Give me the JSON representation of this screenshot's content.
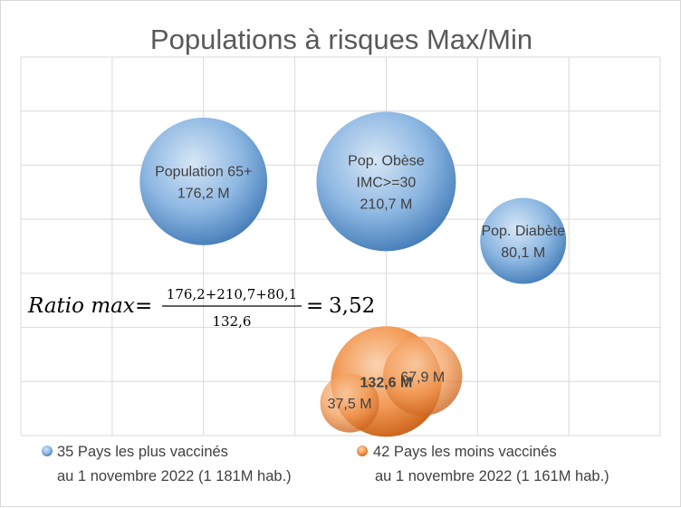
{
  "chart_data": {
    "type": "bubble",
    "title": "Populations à risques Max/Min",
    "xlim": [
      0,
      7
    ],
    "ylim": [
      0,
      7
    ],
    "grid": true,
    "legend_position": "bottom",
    "series": [
      {
        "id": "vaccinated",
        "legend_line1": "35 Pays les plus vaccinés",
        "legend_line2": "au 1 novembre 2022 (1 181M hab.)",
        "color": "#5b9bd5",
        "points": [
          {
            "name": "Population 65+",
            "value_label": "176,2 M",
            "x": 2,
            "y": 4.7,
            "size": 176.2
          },
          {
            "name": "Pop. Obèse",
            "name_line2": "IMC>=30",
            "value_label": "210,7 M",
            "x": 4,
            "y": 4.7,
            "size": 210.7
          },
          {
            "name": "Pop. Diabète",
            "value_label": "80,1 M",
            "x": 5.5,
            "y": 3.6,
            "size": 80.1
          }
        ]
      },
      {
        "id": "unvaccinated",
        "legend_line1": "42 Pays les moins vaccinés",
        "legend_line2": "au 1 novembre 2022 (1 161M hab.)",
        "color": "#ed7d31",
        "points": [
          {
            "value_label": "132,6 M",
            "x": 4,
            "y": 1,
            "size": 132.6,
            "bold": true
          },
          {
            "value_label": "67,9 M",
            "x": 4.4,
            "y": 1.1,
            "size": 67.9
          },
          {
            "value_label": "37,5 M",
            "x": 3.6,
            "y": 0.6,
            "size": 37.5
          }
        ]
      }
    ],
    "annotation": {
      "lhs": "Ratio max",
      "numerator": "176,2+210,7+80,1",
      "denominator": "132,6",
      "result": "3,52"
    }
  }
}
